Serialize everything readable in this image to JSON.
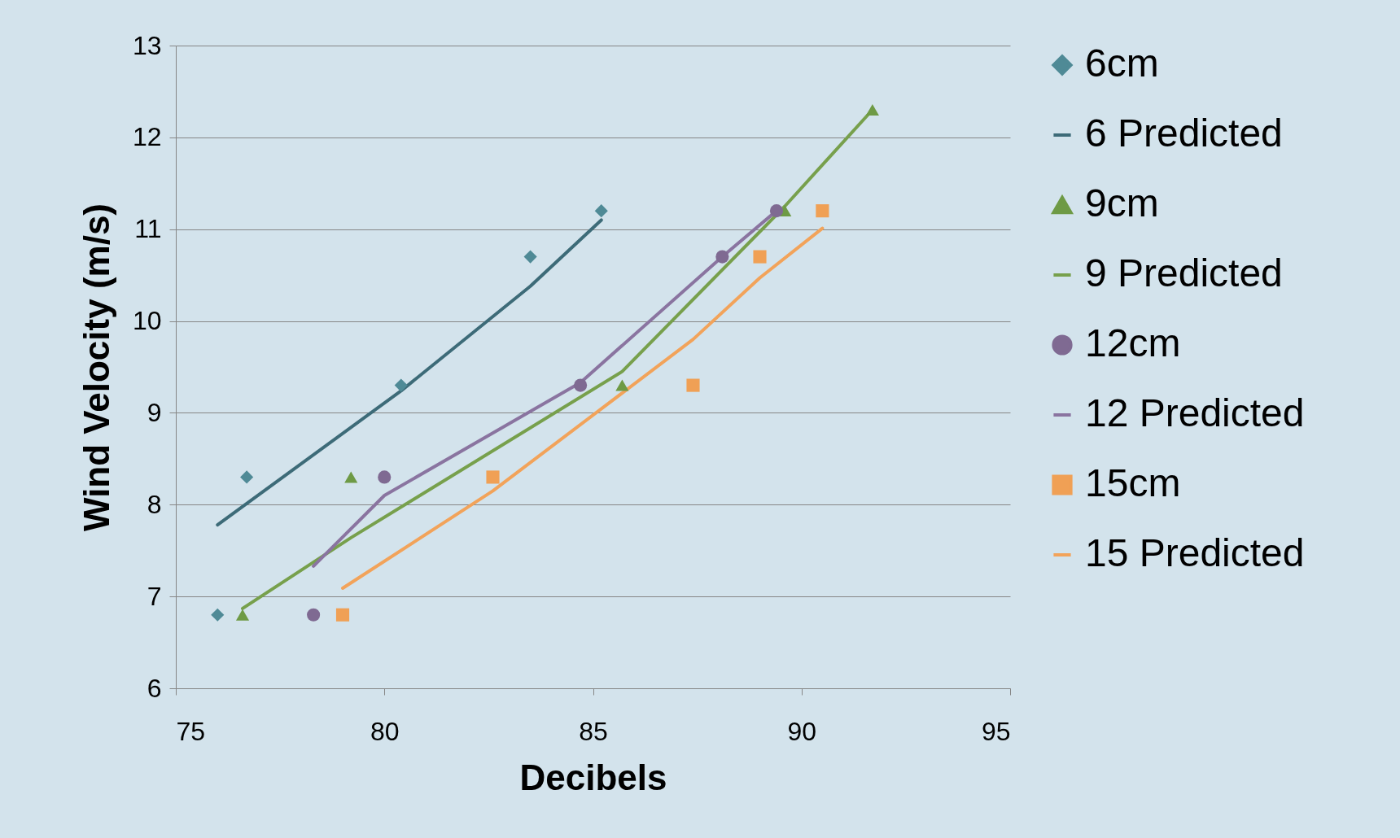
{
  "chart_data": {
    "type": "scatter",
    "xlabel": "Decibels",
    "ylabel": "Wind Velocity (m/s)",
    "xlim": [
      75,
      95
    ],
    "xticks": [
      75,
      80,
      85,
      90,
      95
    ],
    "ylim": [
      6,
      13
    ],
    "yticks": [
      6,
      7,
      8,
      9,
      10,
      11,
      12,
      13
    ],
    "grid": "y",
    "legend": "right",
    "series": [
      {
        "name": "6cm",
        "type": "scatter",
        "marker": "diamond",
        "color": "#4f8a96",
        "x": [
          76.0,
          76.7,
          80.4,
          83.5,
          85.2
        ],
        "values": [
          6.8,
          8.3,
          9.3,
          10.7,
          11.2
        ]
      },
      {
        "name": "6 Predicted",
        "type": "line",
        "marker": "none",
        "color": "#3d6b78",
        "x": [
          76.0,
          80.4,
          83.5,
          85.2
        ],
        "values": [
          7.78,
          9.24,
          10.38,
          11.1
        ]
      },
      {
        "name": "9cm",
        "type": "scatter",
        "marker": "triangle",
        "color": "#6e9a45",
        "x": [
          76.6,
          79.2,
          85.7,
          89.6,
          91.7
        ],
        "values": [
          6.8,
          8.3,
          9.3,
          11.2,
          12.3
        ]
      },
      {
        "name": "9 Predicted",
        "type": "line",
        "marker": "none",
        "color": "#77a04c",
        "x": [
          76.6,
          79.2,
          85.7,
          89.6,
          91.7
        ],
        "values": [
          6.87,
          7.64,
          9.45,
          11.25,
          12.3
        ]
      },
      {
        "name": "12cm",
        "type": "scatter",
        "marker": "circle",
        "color": "#7f6a92",
        "x": [
          78.3,
          80.0,
          84.7,
          88.1,
          89.4
        ],
        "values": [
          6.8,
          8.3,
          9.3,
          10.7,
          11.2
        ]
      },
      {
        "name": "12 Predicted",
        "type": "line",
        "marker": "none",
        "color": "#8a74a0",
        "x": [
          78.3,
          80.0,
          84.7,
          88.1,
          89.4
        ],
        "values": [
          7.33,
          8.1,
          9.33,
          10.7,
          11.2
        ]
      },
      {
        "name": "15cm",
        "type": "scatter",
        "marker": "square",
        "color": "#f0a055",
        "x": [
          79.0,
          82.6,
          87.4,
          89.0,
          90.5
        ],
        "values": [
          6.8,
          8.3,
          9.3,
          10.7,
          11.2
        ]
      },
      {
        "name": "15 Predicted",
        "type": "line",
        "marker": "none",
        "color": "#f2a35a",
        "x": [
          79.0,
          82.6,
          87.4,
          89.0,
          90.5
        ],
        "values": [
          7.09,
          8.15,
          9.8,
          10.47,
          11.01
        ]
      }
    ]
  }
}
